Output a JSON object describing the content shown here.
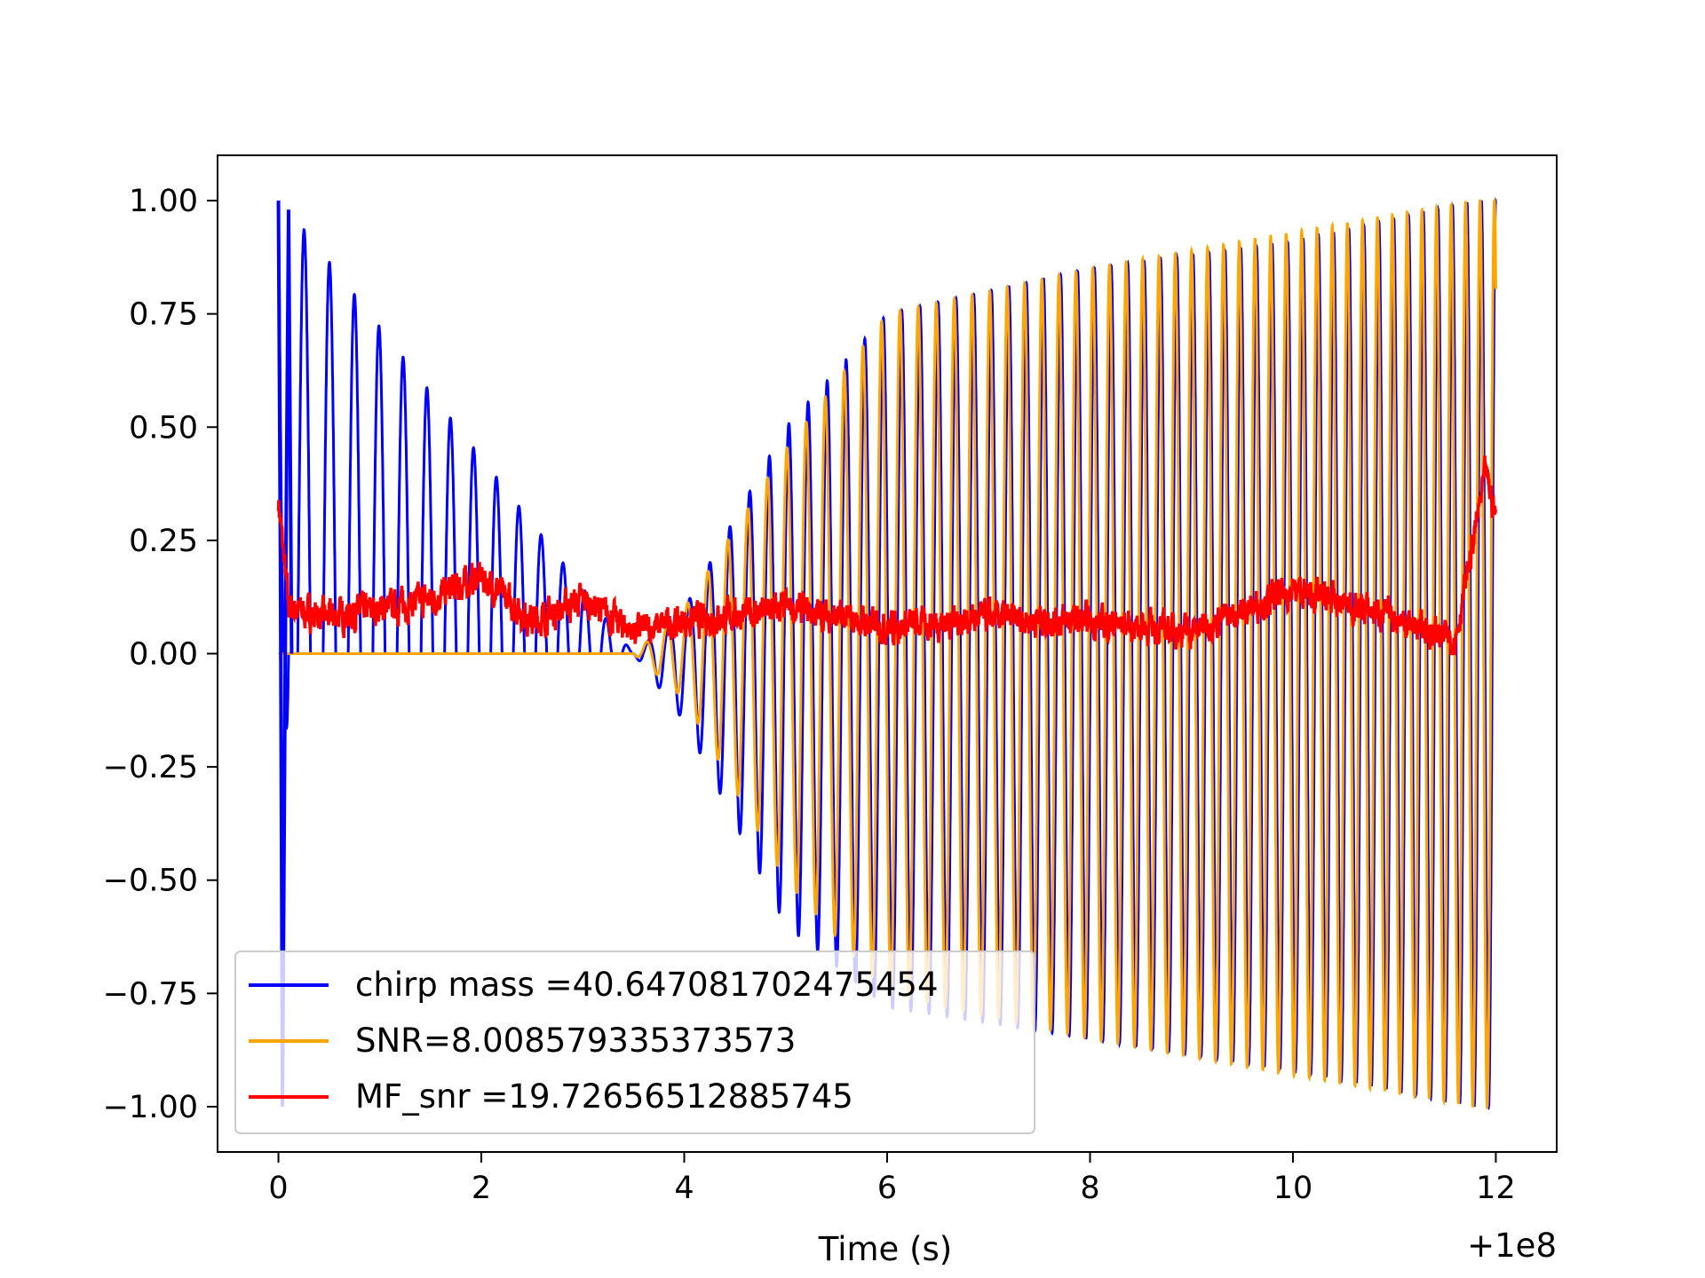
{
  "chart_data": {
    "type": "line",
    "title": "",
    "xlabel": "Time (s)",
    "ylabel": "",
    "x_offset_label": "+1e8",
    "xlim": [
      -0.6,
      12.6
    ],
    "ylim": [
      -1.1,
      1.1
    ],
    "xticks": [
      0,
      2,
      4,
      6,
      8,
      10,
      12
    ],
    "xtick_labels": [
      "0",
      "2",
      "4",
      "6",
      "8",
      "10",
      "12"
    ],
    "yticks": [
      1.0,
      0.75,
      0.5,
      0.25,
      0.0,
      -0.25,
      -0.5,
      -0.75,
      -1.0
    ],
    "ytick_labels": [
      "1.00",
      "0.75",
      "0.50",
      "0.25",
      "0.00",
      "−0.25",
      "−0.50",
      "−0.75",
      "−1.00"
    ],
    "grid": false,
    "legend_position": "lower-left",
    "series": [
      {
        "name": "chirp mass =40.647081702475454",
        "color": "#0000ff",
        "description_points": {
          "x": [
            0.0,
            0.05,
            0.1,
            3.5,
            4.0,
            5.0,
            6.0,
            8.0,
            10.0,
            11.8,
            12.0
          ],
          "envelope_max": [
            1.0,
            0.0,
            0.98,
            0.0,
            0.1,
            0.5,
            0.75,
            0.85,
            0.91,
            1.0,
            1.0
          ],
          "envelope_min": [
            0.0,
            -1.0,
            0.0,
            0.0,
            -0.15,
            -0.6,
            -0.78,
            -0.85,
            -0.92,
            -1.0,
            -1.0
          ]
        }
      },
      {
        "name": "SNR=8.008579335373573",
        "color": "#ffa500",
        "description_points": {
          "x": [
            0.0,
            3.5,
            4.0,
            5.0,
            6.0,
            8.0,
            10.0,
            11.8,
            12.0
          ],
          "envelope_max": [
            0.0,
            0.0,
            0.1,
            0.45,
            0.75,
            0.85,
            0.93,
            1.0,
            1.0
          ],
          "envelope_min": [
            0.0,
            0.0,
            -0.1,
            -0.5,
            -0.75,
            -0.85,
            -0.93,
            -1.0,
            -1.0
          ]
        }
      },
      {
        "name": "MF_snr =19.72656512885745",
        "color": "#ff0000",
        "description_points": {
          "x": [
            0.0,
            0.1,
            0.5,
            1.5,
            2.0,
            2.5,
            3.0,
            3.5,
            4.0,
            5.0,
            6.0,
            7.0,
            8.0,
            9.0,
            10.0,
            11.0,
            11.6,
            11.9,
            12.0
          ],
          "y": [
            0.34,
            0.1,
            0.08,
            0.12,
            0.17,
            0.07,
            0.12,
            0.05,
            0.07,
            0.1,
            0.06,
            0.08,
            0.07,
            0.05,
            0.14,
            0.08,
            0.03,
            0.4,
            0.3
          ]
        }
      }
    ]
  }
}
